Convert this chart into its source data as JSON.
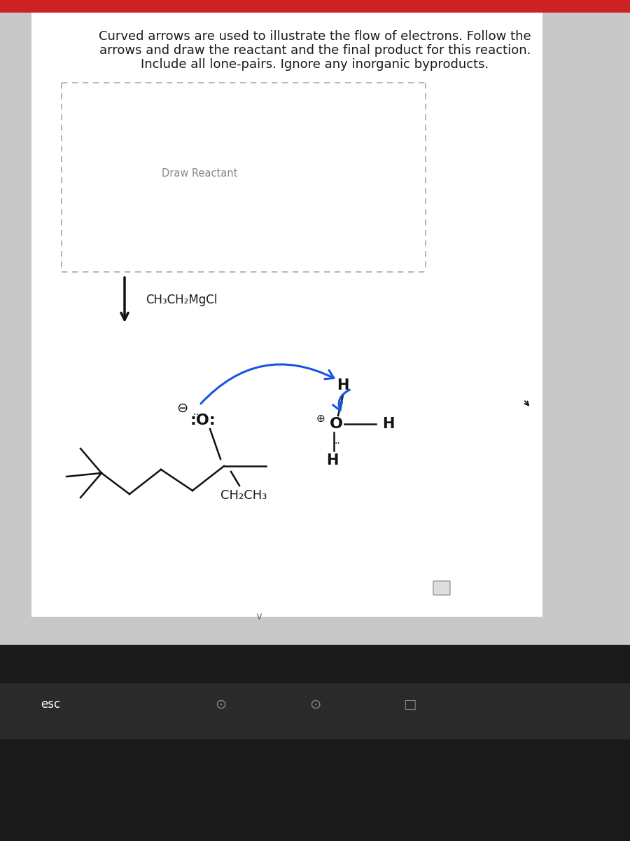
{
  "bg_top_color": "#cc2222",
  "bg_main_color": "#c8c8c8",
  "bg_bottom_color": "#1a1a1a",
  "panel_color": "#ffffff",
  "title_lines": [
    "Curved arrows are used to illustrate the flow of electrons. Follow the",
    "arrows and draw the reactant and the final product for this reaction.",
    "Include all lone-pairs. Ignore any inorganic byproducts."
  ],
  "draw_reactant_label": "Draw Reactant",
  "grignard_label": "CH₃CH₂MgCl",
  "text_color": "#1a1a1a",
  "gray_text_color": "#666666",
  "title_fontsize": 13.0,
  "label_fontsize": 11,
  "blue_arrow_color": "#1a55e0",
  "black_color": "#111111",
  "esc_label": "esc"
}
